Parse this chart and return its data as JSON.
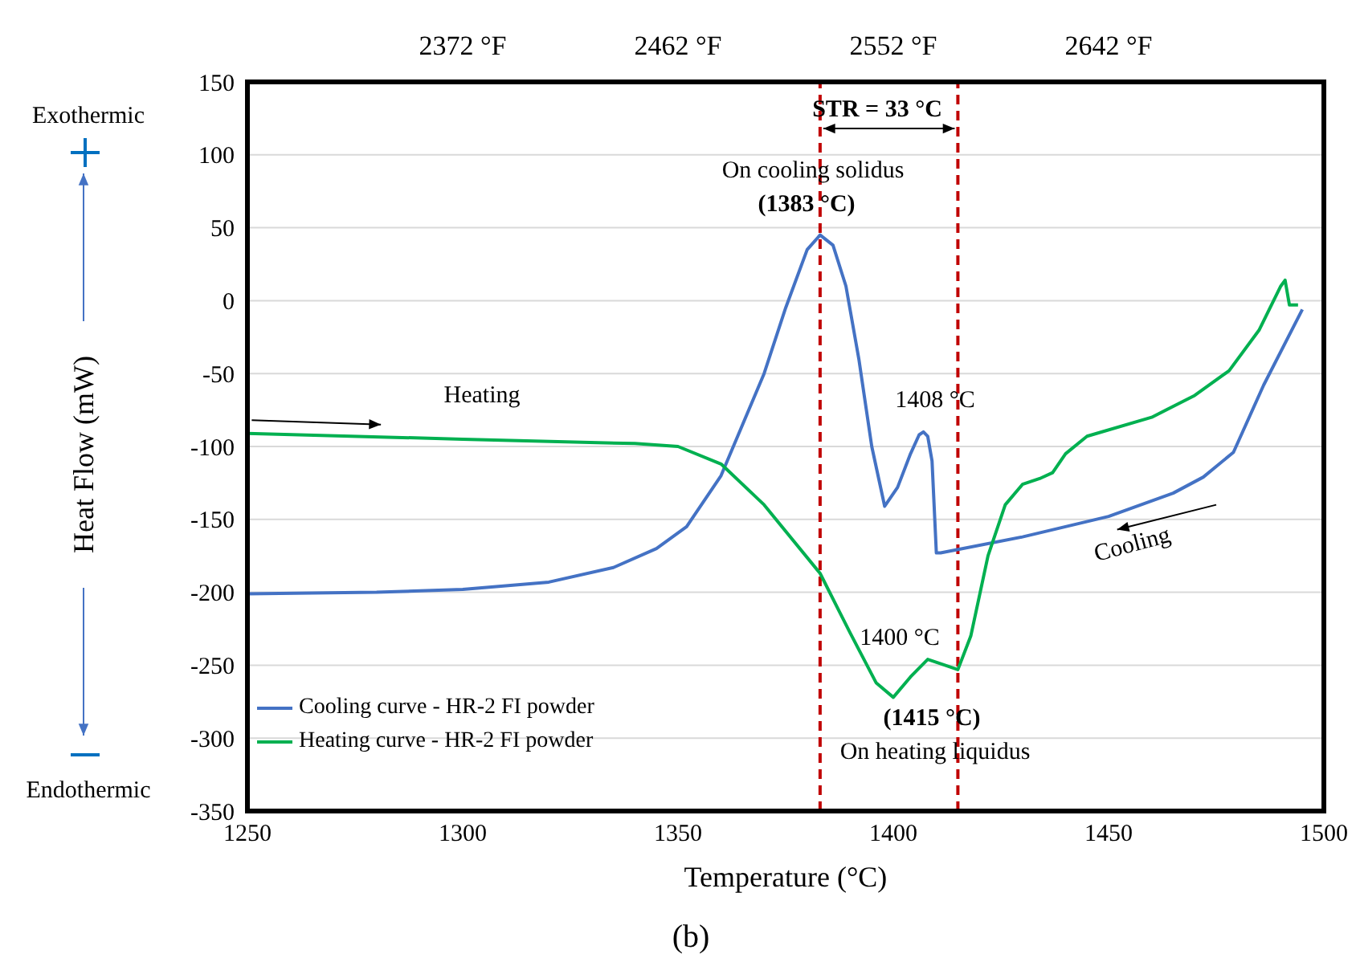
{
  "chart_data": {
    "type": "line",
    "xlabel": "Temperature (°C)",
    "ylabel": "Heat Flow (mW)",
    "xlim": [
      1250,
      1500
    ],
    "xticks": [
      1250,
      1300,
      1350,
      1400,
      1450,
      1500
    ],
    "ylim": [
      -350,
      150
    ],
    "yticks": [
      -350,
      -300,
      -250,
      -200,
      -150,
      -100,
      -50,
      0,
      50,
      100,
      150
    ],
    "x2lim": [
      2282,
      2732
    ],
    "x2ticks": [
      {
        "value": 2372,
        "label": "2372 °F"
      },
      {
        "value": 2462,
        "label": "2462 °F"
      },
      {
        "value": 2552,
        "label": "2552 °F"
      },
      {
        "value": 2642,
        "label": "2642 °F"
      }
    ],
    "grid": true,
    "legend": "bottom left",
    "marker": "none",
    "line_style": "solid",
    "series": [
      {
        "name": "Cooling curve - HR-2 FI powder",
        "color": "#4472c4",
        "x": [
          1250,
          1280,
          1300,
          1320,
          1335,
          1345,
          1352,
          1360,
          1365,
          1370,
          1375,
          1380,
          1383,
          1386,
          1389,
          1392,
          1395,
          1398,
          1401,
          1404,
          1406,
          1407,
          1408,
          1409,
          1410,
          1411,
          1430,
          1450,
          1465,
          1472,
          1479,
          1486,
          1495
        ],
        "values": [
          -201,
          -200,
          -198,
          -193,
          -183,
          -170,
          -155,
          -120,
          -85,
          -50,
          -5,
          35,
          45,
          38,
          10,
          -40,
          -100,
          -141,
          -128,
          -105,
          -92,
          -90,
          -93,
          -110,
          -173,
          -173,
          -162,
          -148,
          -132,
          -121,
          -104,
          -58,
          -6
        ]
      },
      {
        "name": "Heating curve - HR-2 FI powder",
        "color": "#00b050",
        "x": [
          1250,
          1300,
          1340,
          1350,
          1360,
          1370,
          1383,
          1390,
          1396,
          1400,
          1404,
          1408,
          1412,
          1415,
          1418,
          1422,
          1426,
          1430,
          1434,
          1437,
          1440,
          1445,
          1460,
          1470,
          1478,
          1485,
          1490,
          1491,
          1492,
          1494
        ],
        "values": [
          -91,
          -95,
          -98,
          -100,
          -112,
          -140,
          -187,
          -228,
          -262,
          -272,
          -258,
          -246,
          -250,
          -253,
          -230,
          -175,
          -140,
          -126,
          -122,
          -118,
          -105,
          -93,
          -80,
          -65,
          -48,
          -20,
          10,
          14,
          -3,
          -3
        ]
      }
    ],
    "ref_lines": [
      {
        "axis": "x",
        "value": 1383,
        "color": "#c00000",
        "line_style": "dashed"
      },
      {
        "axis": "x",
        "value": 1415,
        "color": "#c00000",
        "line_style": "dashed"
      }
    ],
    "annotations": [
      "Exothermic",
      "Endothermic",
      "(b)",
      "STR = 33 °C",
      "On cooling solidus",
      "(1383 °C)",
      "1408 °C",
      "1400 °C",
      "(1415 °C)",
      "On heating liquidus",
      "Heating",
      "Cooling"
    ]
  }
}
